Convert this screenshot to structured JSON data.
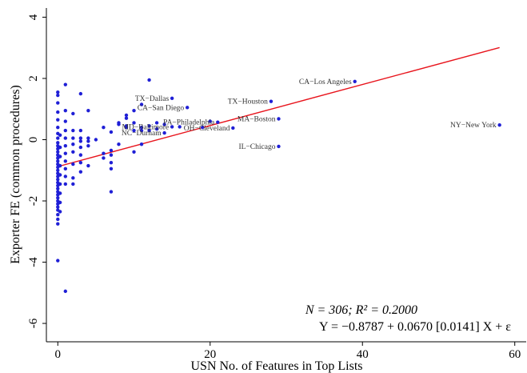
{
  "chart_data": {
    "type": "scatter",
    "title": "",
    "xlabel": "USN No. of Features in Top Lists",
    "ylabel": "Exporter FE (common procedures)",
    "xlim": [
      -1.5,
      61.5
    ],
    "ylim": [
      -6.6,
      4.3
    ],
    "xticks": [
      0,
      20,
      40,
      60
    ],
    "yticks": [
      -6,
      -4,
      -2,
      0,
      2,
      4
    ],
    "grid": false,
    "annotation": {
      "stats": "N = 306;  R² = 0.2000",
      "equation": "Y = −0.8787 + 0.0670 [0.0141] X + ε"
    },
    "fit_line": {
      "color": "#e8141c",
      "intercept": -0.8787,
      "slope": 0.067,
      "x": [
        0,
        58
      ]
    },
    "point_color": "#1f1fd6",
    "labeled_points": [
      {
        "label": "CA−Los Angeles",
        "x": 39,
        "y": 1.9
      },
      {
        "label": "NY−New York",
        "x": 58,
        "y": 0.48
      },
      {
        "label": "TX−Houston",
        "x": 28,
        "y": 1.25
      },
      {
        "label": "MA−Boston",
        "x": 29,
        "y": 0.68
      },
      {
        "label": "IL−Chicago",
        "x": 29,
        "y": -0.22
      },
      {
        "label": "TX−Dallas",
        "x": 15,
        "y": 1.35
      },
      {
        "label": "CA−San Diego",
        "x": 17,
        "y": 1.05
      },
      {
        "label": "PA−Philadelphia",
        "x": 21,
        "y": 0.57
      },
      {
        "label": "OH−Cleveland",
        "x": 23,
        "y": 0.38
      },
      {
        "label": "MD−Baltimore",
        "x": 15,
        "y": 0.42
      },
      {
        "label": "NC−Durham",
        "x": 14,
        "y": 0.22
      }
    ],
    "points": [
      [
        0,
        1.55
      ],
      [
        0,
        1.45
      ],
      [
        0,
        1.2
      ],
      [
        0,
        0.9
      ],
      [
        0,
        0.65
      ],
      [
        0,
        0.4
      ],
      [
        0,
        0.2
      ],
      [
        0,
        0.05
      ],
      [
        0,
        -0.1
      ],
      [
        0,
        -0.2
      ],
      [
        0,
        -0.3
      ],
      [
        0,
        -0.4
      ],
      [
        0,
        -0.5
      ],
      [
        0,
        -0.6
      ],
      [
        0,
        -0.7
      ],
      [
        0,
        -0.8
      ],
      [
        0,
        -0.9
      ],
      [
        0,
        -1.0
      ],
      [
        0,
        -1.1
      ],
      [
        0,
        -1.2
      ],
      [
        0,
        -1.3
      ],
      [
        0,
        -1.4
      ],
      [
        0,
        -1.5
      ],
      [
        0,
        -1.6
      ],
      [
        0,
        -1.7
      ],
      [
        0,
        -1.8
      ],
      [
        0,
        -1.9
      ],
      [
        0,
        -2.0
      ],
      [
        0,
        -2.1
      ],
      [
        0,
        -2.2
      ],
      [
        0,
        -2.3
      ],
      [
        0,
        -2.45
      ],
      [
        0,
        -2.6
      ],
      [
        0,
        -2.75
      ],
      [
        0,
        -3.95
      ],
      [
        0.3,
        0.15
      ],
      [
        0.3,
        -0.25
      ],
      [
        0.3,
        -0.55
      ],
      [
        0.3,
        -0.85
      ],
      [
        0.3,
        -1.15
      ],
      [
        0.3,
        -1.45
      ],
      [
        0.3,
        -1.75
      ],
      [
        0.3,
        -2.05
      ],
      [
        0.3,
        -2.35
      ],
      [
        1,
        1.8
      ],
      [
        1,
        0.95
      ],
      [
        1,
        0.6
      ],
      [
        1,
        0.3
      ],
      [
        1,
        0.05
      ],
      [
        1,
        -0.2
      ],
      [
        1,
        -0.45
      ],
      [
        1,
        -0.7
      ],
      [
        1,
        -0.95
      ],
      [
        1,
        -1.2
      ],
      [
        1,
        -1.45
      ],
      [
        1,
        -4.95
      ],
      [
        2,
        0.85
      ],
      [
        2,
        0.3
      ],
      [
        2,
        0.05
      ],
      [
        2,
        -0.15
      ],
      [
        2,
        -0.4
      ],
      [
        2,
        -0.8
      ],
      [
        2,
        -1.25
      ],
      [
        2,
        -1.45
      ],
      [
        3,
        1.5
      ],
      [
        3,
        0.3
      ],
      [
        3,
        0.05
      ],
      [
        3,
        -0.05
      ],
      [
        3,
        -0.25
      ],
      [
        3,
        -0.5
      ],
      [
        3,
        -0.75
      ],
      [
        3,
        -1.05
      ],
      [
        4,
        0.95
      ],
      [
        4,
        0.05
      ],
      [
        4,
        -0.05
      ],
      [
        4,
        -0.2
      ],
      [
        4,
        -0.85
      ],
      [
        5,
        0.0
      ],
      [
        6,
        0.4
      ],
      [
        6,
        -0.45
      ],
      [
        6,
        -0.6
      ],
      [
        7,
        -0.35
      ],
      [
        7,
        -0.5
      ],
      [
        7,
        -0.75
      ],
      [
        7,
        -0.95
      ],
      [
        7,
        -1.7
      ],
      [
        7,
        0.25
      ],
      [
        8,
        0.55
      ],
      [
        8,
        0.5
      ],
      [
        8,
        -0.15
      ],
      [
        9,
        0.7
      ],
      [
        9,
        0.8
      ],
      [
        9,
        0.45
      ],
      [
        9,
        0.4
      ],
      [
        10,
        0.95
      ],
      [
        10,
        0.55
      ],
      [
        10,
        -0.4
      ],
      [
        10,
        0.3
      ],
      [
        11,
        1.15
      ],
      [
        11,
        0.4
      ],
      [
        11,
        0.3
      ],
      [
        11,
        -0.15
      ],
      [
        12,
        1.95
      ],
      [
        12,
        0.3
      ],
      [
        12,
        0.45
      ],
      [
        13,
        0.55
      ],
      [
        13,
        0.35
      ],
      [
        14,
        0.5
      ],
      [
        16,
        0.42
      ],
      [
        19,
        0.4
      ],
      [
        20,
        0.6
      ]
    ]
  }
}
